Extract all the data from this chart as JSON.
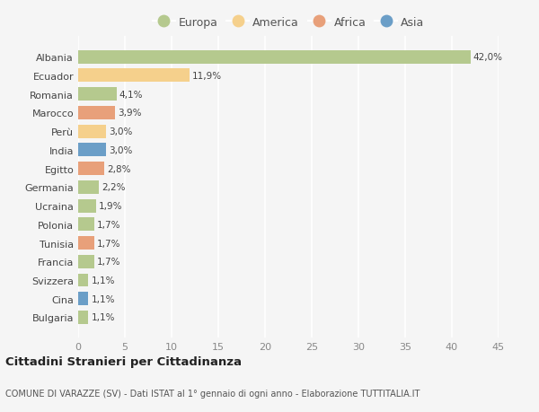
{
  "categories": [
    "Albania",
    "Ecuador",
    "Romania",
    "Marocco",
    "Perù",
    "India",
    "Egitto",
    "Germania",
    "Ucraina",
    "Polonia",
    "Tunisia",
    "Francia",
    "Svizzera",
    "Cina",
    "Bulgaria"
  ],
  "values": [
    42.0,
    11.9,
    4.1,
    3.9,
    3.0,
    3.0,
    2.8,
    2.2,
    1.9,
    1.7,
    1.7,
    1.7,
    1.1,
    1.1,
    1.1
  ],
  "labels": [
    "42,0%",
    "11,9%",
    "4,1%",
    "3,9%",
    "3,0%",
    "3,0%",
    "2,8%",
    "2,2%",
    "1,9%",
    "1,7%",
    "1,7%",
    "1,7%",
    "1,1%",
    "1,1%",
    "1,1%"
  ],
  "continent": [
    "Europa",
    "America",
    "Europa",
    "Africa",
    "America",
    "Asia",
    "Africa",
    "Europa",
    "Europa",
    "Europa",
    "Africa",
    "Europa",
    "Europa",
    "Asia",
    "Europa"
  ],
  "colors": {
    "Europa": "#b5c98e",
    "America": "#f5d08c",
    "Africa": "#e8a07a",
    "Asia": "#6b9ec7"
  },
  "legend_order": [
    "Europa",
    "America",
    "Africa",
    "Asia"
  ],
  "title": "Cittadini Stranieri per Cittadinanza",
  "subtitle": "COMUNE DI VARAZZE (SV) - Dati ISTAT al 1° gennaio di ogni anno - Elaborazione TUTTITALIA.IT",
  "xlim": [
    0,
    45
  ],
  "xticks": [
    0,
    5,
    10,
    15,
    20,
    25,
    30,
    35,
    40,
    45
  ],
  "background_color": "#f5f5f5",
  "grid_color": "#ffffff",
  "bar_height": 0.72
}
